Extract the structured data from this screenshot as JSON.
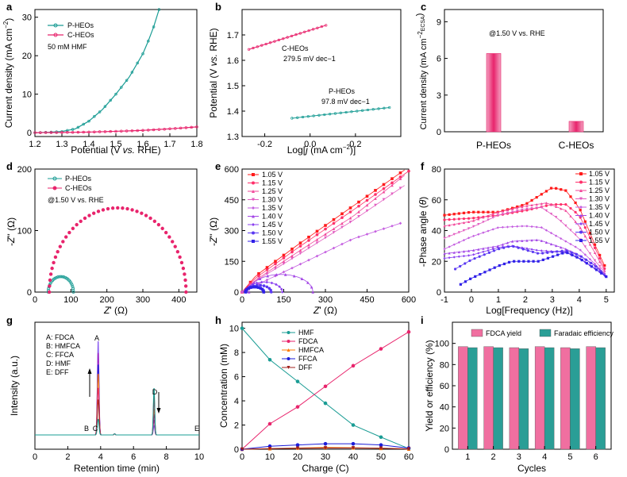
{
  "colors": {
    "teal": "#1a9c94",
    "pink": "#e8246c",
    "violet": "#9b35e0",
    "blue": "#1c1cd8",
    "orange": "#ff7a00",
    "darkred": "#a0201c"
  },
  "chart_data": [
    {
      "panel": "a",
      "type": "line",
      "xlabel": "Potential (V vs. RHE)",
      "ylabel": "Current density (mA cm−2)",
      "xlim": [
        1.2,
        1.8
      ],
      "ylim": [
        -1,
        32
      ],
      "xticks": [
        1.2,
        1.3,
        1.4,
        1.5,
        1.6,
        1.7,
        1.8
      ],
      "yticks": [
        0,
        10,
        20,
        30
      ],
      "annotation": "50 mM HMF",
      "series": [
        {
          "name": "P-HEOs",
          "color": "#1a9c94",
          "x": [
            1.2,
            1.25,
            1.3,
            1.35,
            1.4,
            1.45,
            1.5,
            1.55,
            1.6,
            1.62,
            1.64,
            1.66
          ],
          "y": [
            0,
            0.1,
            0.3,
            1.0,
            3.0,
            6.0,
            10.0,
            14.5,
            20.5,
            23.8,
            27.5,
            32.0
          ]
        },
        {
          "name": "C-HEOs",
          "color": "#e8246c",
          "x": [
            1.2,
            1.3,
            1.4,
            1.5,
            1.6,
            1.7,
            1.8
          ],
          "y": [
            0,
            0.05,
            0.15,
            0.35,
            0.6,
            1.0,
            1.5
          ]
        }
      ]
    },
    {
      "panel": "b",
      "type": "scatter",
      "xlabel": "Log[j (mA cm−2)]",
      "ylabel": "Potential (V vs. RHE)",
      "xlim": [
        -0.3,
        0.4
      ],
      "ylim": [
        1.3,
        1.8
      ],
      "xticks": [
        -0.2,
        0.0,
        0.2
      ],
      "yticks": [
        1.3,
        1.4,
        1.5,
        1.6,
        1.7
      ],
      "series": [
        {
          "name": "C-HEOs",
          "color": "#e8246c",
          "slope_label": "279.5 mV dec−1",
          "x": [
            -0.27,
            0.07
          ],
          "y": [
            1.643,
            1.738
          ]
        },
        {
          "name": "P-HEOs",
          "color": "#1a9c94",
          "slope_label": "97.8 mV dec−1",
          "x": [
            -0.08,
            0.35
          ],
          "y": [
            1.372,
            1.414
          ]
        }
      ]
    },
    {
      "panel": "c",
      "type": "bar",
      "xlabel": "",
      "ylabel": "Current density (mA cm−2ECSA)",
      "ylim": [
        0,
        10
      ],
      "yticks": [
        0,
        3,
        6,
        9
      ],
      "annotation": "@1.50 V vs. RHE",
      "categories": [
        "P-HEOs",
        "C-HEOs"
      ],
      "values": [
        6.4,
        0.85
      ]
    },
    {
      "panel": "d",
      "type": "scatter",
      "xlabel": "Z' (Ω)",
      "ylabel": "-Z'' (Ω)",
      "xlim": [
        0,
        450
      ],
      "ylim": [
        0,
        200
      ],
      "xticks": [
        0,
        100,
        200,
        300,
        400
      ],
      "yticks": [
        0,
        100,
        200
      ],
      "annotation": "@1.50 V vs. RHE",
      "series": [
        {
          "name": "P-HEOs",
          "color": "#1a9c94",
          "center": 72,
          "radius": 35
        },
        {
          "name": "C-HEOs",
          "color": "#e8246c",
          "center": 230,
          "radius": 190
        }
      ]
    },
    {
      "panel": "e",
      "type": "scatter",
      "xlabel": "Z' (Ω)",
      "ylabel": "-Z'' (Ω)",
      "xlim": [
        0,
        600
      ],
      "ylim": [
        0,
        600
      ],
      "xticks": [
        0,
        150,
        300,
        450,
        600
      ],
      "yticks": [
        0,
        150,
        300,
        450,
        600
      ],
      "legend": [
        "1.05 V",
        "1.15 V",
        "1.25 V",
        "1.30 V",
        "1.35 V",
        "1.40 V",
        "1.45 V",
        "1.50 V",
        "1.55 V"
      ]
    },
    {
      "panel": "f",
      "type": "line",
      "xlabel": "Log[Frequency (Hz)]",
      "ylabel": "-Phase angle (θ)",
      "xlim": [
        -1,
        5.3
      ],
      "ylim": [
        0,
        80
      ],
      "xticks": [
        -1,
        0,
        1,
        2,
        3,
        4,
        5
      ],
      "yticks": [
        0,
        20,
        40,
        60,
        80
      ],
      "legend": [
        "1.05 V",
        "1.15 V",
        "1.25 V",
        "1.30 V",
        "1.35 V",
        "1.40 V",
        "1.45 V",
        "1.50 V",
        "1.55 V"
      ]
    },
    {
      "panel": "g",
      "type": "line",
      "xlabel": "Retention time (min)",
      "ylabel": "Intensity (a.u.)",
      "xlim": [
        0,
        10
      ],
      "xticks": [
        0,
        2,
        4,
        6,
        8,
        10
      ],
      "legend": [
        "A: FDCA",
        "B: HMFCA",
        "C: FFCA",
        "D: HMF",
        "E: DFF"
      ],
      "peak_labels": [
        "A",
        "B",
        "C",
        "D",
        "E"
      ]
    },
    {
      "panel": "h",
      "type": "line",
      "xlabel": "Charge (C)",
      "ylabel": "Concentration (mM)",
      "xlim": [
        0,
        60
      ],
      "ylim": [
        0,
        10.5
      ],
      "xticks": [
        0,
        10,
        20,
        30,
        40,
        50,
        60
      ],
      "yticks": [
        0,
        2,
        4,
        6,
        8,
        10
      ],
      "x": [
        0,
        10,
        20,
        30,
        40,
        50,
        60
      ],
      "series": [
        {
          "name": "HMF",
          "color": "#1a9c94",
          "values": [
            10.0,
            7.4,
            5.6,
            3.8,
            2.0,
            1.0,
            0.05
          ]
        },
        {
          "name": "FDCA",
          "color": "#e8246c",
          "values": [
            0.0,
            2.1,
            3.5,
            5.2,
            6.9,
            8.3,
            9.7
          ]
        },
        {
          "name": "HMFCA",
          "color": "#ff7a00",
          "values": [
            0.0,
            0.05,
            0.1,
            0.15,
            0.12,
            0.08,
            0.02
          ]
        },
        {
          "name": "FFCA",
          "color": "#1c1cd8",
          "values": [
            0.0,
            0.25,
            0.35,
            0.45,
            0.45,
            0.35,
            0.1
          ]
        },
        {
          "name": "DFF",
          "color": "#a0201c",
          "values": [
            0.0,
            0.05,
            0.08,
            0.1,
            0.1,
            0.08,
            0.02
          ]
        }
      ]
    },
    {
      "panel": "i",
      "type": "bar",
      "xlabel": "Cycles",
      "ylabel": "Yield or efficiency (%)",
      "ylim": [
        0,
        120
      ],
      "yticks": [
        0,
        20,
        40,
        60,
        80,
        100
      ],
      "categories": [
        "1",
        "2",
        "3",
        "4",
        "5",
        "6"
      ],
      "series": [
        {
          "name": "FDCA yield",
          "color": "#f06fa0",
          "values": [
            97,
            97,
            96,
            97,
            96,
            97
          ]
        },
        {
          "name": "Faradaic efficiency",
          "color": "#2a9e96",
          "values": [
            96,
            96,
            95,
            96,
            95,
            96
          ]
        }
      ]
    }
  ]
}
